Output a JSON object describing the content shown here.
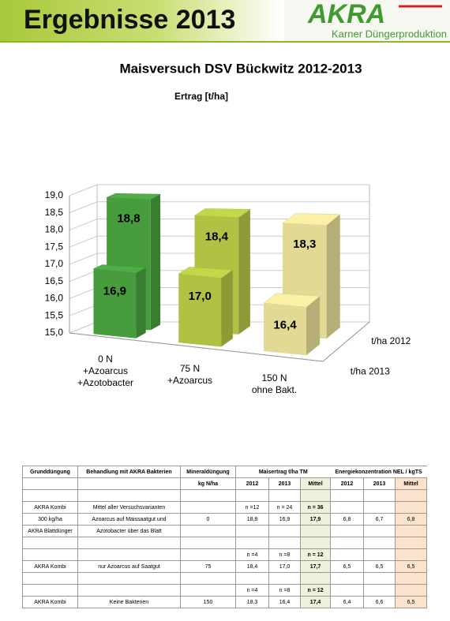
{
  "header": {
    "title": "Ergebnisse 2013",
    "logo": "AKRA",
    "company": "Karner Düngerproduktion"
  },
  "heading": "Maisversuch DSV Bückwitz 2012-2013",
  "chart_data": {
    "type": "bar3d",
    "title": "Ertrag [t/ha]",
    "categories": [
      "0 N\n+Azoarcus\n+Azotobacter",
      "75 N\n+Azoarcus",
      "150 N\nohne Bakt."
    ],
    "colors": [
      "#4fae45",
      "#c4d64a",
      "#fbf1a4"
    ],
    "series": [
      {
        "name": "t/ha 2012",
        "values": [
          18.8,
          18.4,
          18.3
        ],
        "value_labels": [
          "18,8",
          "18,4",
          "18,3"
        ]
      },
      {
        "name": "t/ha 2013",
        "values": [
          16.9,
          17.0,
          16.4
        ],
        "value_labels": [
          "16,9",
          "17,0",
          "16,4"
        ]
      }
    ],
    "ylim": [
      15,
      19
    ],
    "yticks": [
      {
        "value": 15,
        "label": "15,0"
      },
      {
        "value": 15.5,
        "label": "15,5"
      },
      {
        "value": 16,
        "label": "16,0"
      },
      {
        "value": 16.5,
        "label": "16,5"
      },
      {
        "value": 17,
        "label": "17,0"
      },
      {
        "value": 17.5,
        "label": "17,5"
      },
      {
        "value": 18,
        "label": "18,0"
      },
      {
        "value": 18.5,
        "label": "18,5"
      },
      {
        "value": 19,
        "label": "19,0"
      }
    ],
    "grid": true
  },
  "table": {
    "group_headers": [
      "Grunddüngung",
      "Behandlung mit AKRA Bakterien",
      "Mineraldüngung",
      "Maisertrag t/ha TM",
      "Energiekonzentration NEL / kgTS"
    ],
    "subheaders": [
      null,
      null,
      "kg N/ha",
      "2012",
      "2013",
      "Mittel",
      "2012",
      "2013",
      "Mittel"
    ],
    "rows": [
      [
        null,
        null,
        null,
        null,
        null,
        null,
        null,
        null,
        null
      ],
      [
        "AKRA Kombi",
        "Mittel aller Versuchsvarianten",
        null,
        "n =12",
        "n = 24",
        "n = 36",
        null,
        null,
        null
      ],
      [
        "300 kg/ha",
        "Azoarcus auf Maissaatgut und",
        "0",
        "18,8",
        "16,9",
        "17,9",
        "6,8",
        "6,7",
        "6,8"
      ],
      [
        "AKRA Blattdünger",
        "Azotobacter über das Blatt",
        null,
        null,
        null,
        null,
        null,
        null,
        null
      ],
      [
        null,
        null,
        null,
        null,
        null,
        null,
        null,
        null,
        null
      ],
      [
        null,
        null,
        null,
        "n =4",
        "n =8",
        "n = 12",
        null,
        null,
        null
      ],
      [
        "AKRA Kombi",
        "nur Azoarcus auf Saatgut",
        "75",
        "18,4",
        "17,0",
        "17,7",
        "6,5",
        "6,5",
        "6,5"
      ],
      [
        null,
        null,
        null,
        null,
        null,
        null,
        null,
        null,
        null
      ],
      [
        null,
        null,
        null,
        "n =4",
        "n =8",
        "n = 12",
        null,
        null,
        null
      ],
      [
        "AKRA Kombi",
        "Keine Bakterien",
        "150",
        "18,3",
        "16,4",
        "17,4",
        "6,4",
        "6,6",
        "6,5"
      ]
    ]
  }
}
